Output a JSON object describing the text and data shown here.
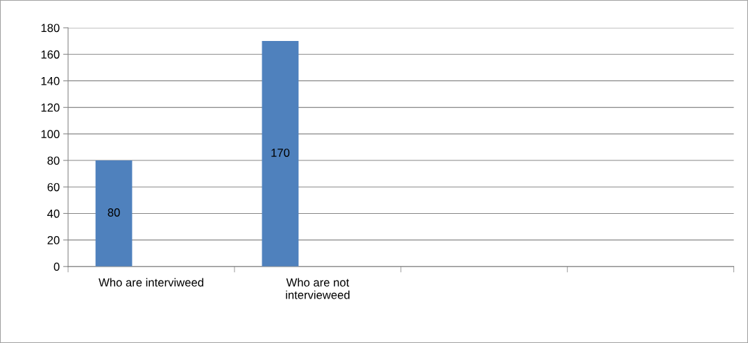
{
  "chart_data": {
    "type": "bar",
    "categories": [
      "Who are interviweed",
      "Who are not intervieweed",
      null,
      null
    ],
    "values": [
      80,
      170,
      null,
      null
    ],
    "color": "#4f81bd",
    "ylim": [
      0,
      180
    ],
    "yticks": [
      0,
      20,
      40,
      60,
      80,
      100,
      120,
      140,
      160,
      180
    ],
    "grid": "y",
    "data_labels": true
  }
}
